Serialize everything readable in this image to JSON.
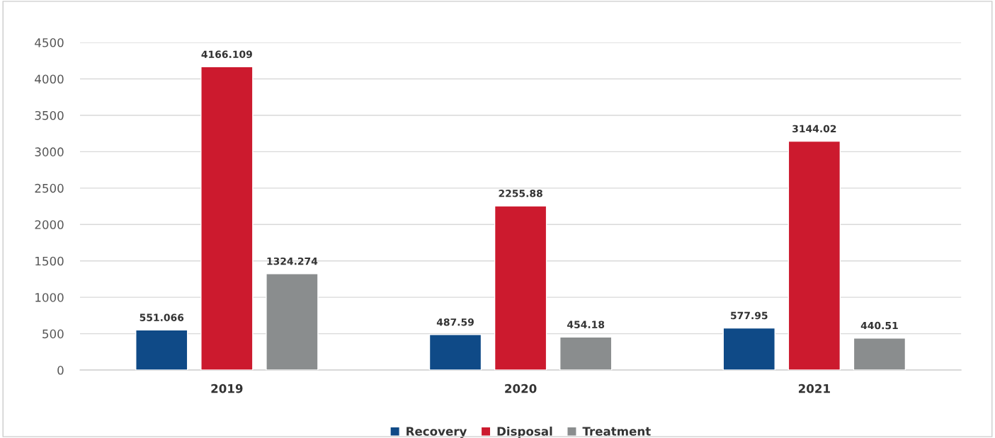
{
  "chart_data": {
    "type": "bar",
    "categories": [
      "2019",
      "2020",
      "2021"
    ],
    "series": [
      {
        "name": "Recovery",
        "color": "#0f4a87",
        "values": [
          551.066,
          487.59,
          577.95
        ]
      },
      {
        "name": "Disposal",
        "color": "#cc1a2e",
        "values": [
          4166.109,
          2255.88,
          3144.02
        ]
      },
      {
        "name": "Treatment",
        "color": "#8a8d8e",
        "values": [
          1324.274,
          454.18,
          440.51
        ]
      }
    ],
    "ylim": [
      0,
      4500
    ],
    "yticks": [
      0,
      500,
      1000,
      1500,
      2000,
      2500,
      3000,
      3500,
      4000,
      4500
    ],
    "grid": "y",
    "legend": "bottom",
    "data_labels": true
  }
}
